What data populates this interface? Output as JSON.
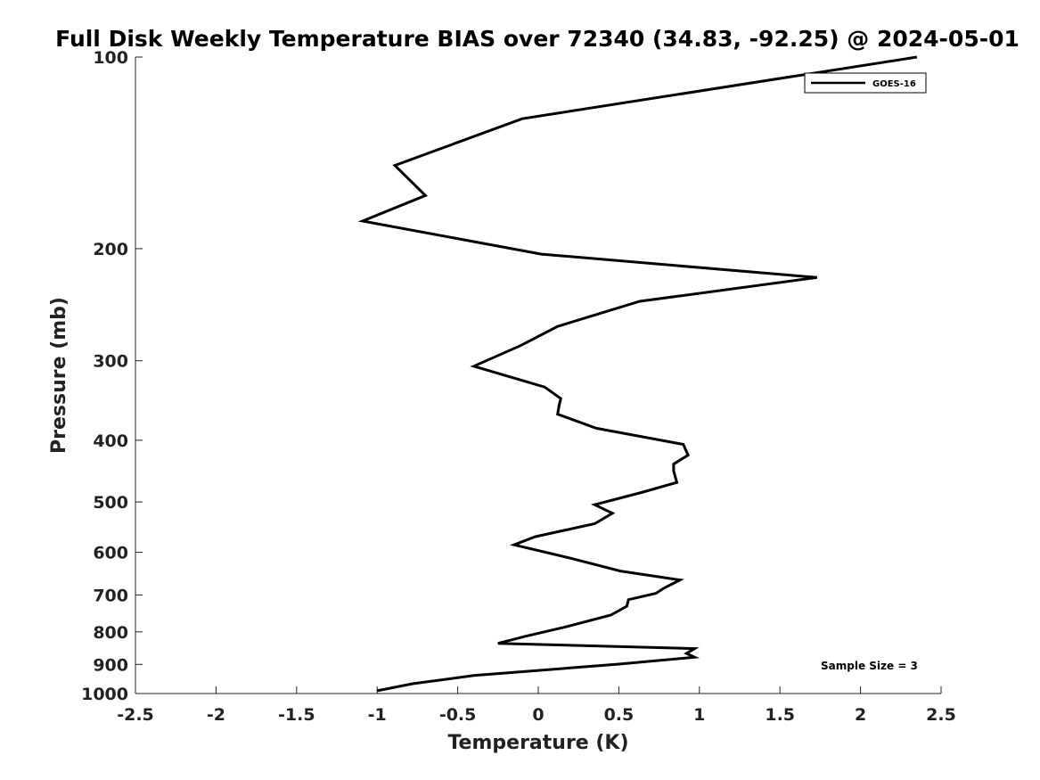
{
  "chart_data": {
    "type": "line",
    "title": "Full Disk Weekly Temperature BIAS over 72340 (34.83, -92.25) @ 2024-05-01",
    "xlabel": "Temperature (K)",
    "ylabel": "Pressure (mb)",
    "xlim": [
      -2.5,
      2.5
    ],
    "ylim": [
      100,
      1000
    ],
    "y_scale": "log",
    "y_reversed": true,
    "x_ticks": [
      "-2.5",
      "-2",
      "-1.5",
      "-1",
      "-0.5",
      "0",
      "0.5",
      "1",
      "1.5",
      "2",
      "2.5"
    ],
    "y_ticks": [
      "100",
      "200",
      "300",
      "400",
      "500",
      "600",
      "700",
      "800",
      "900",
      "1000"
    ],
    "grid": false,
    "legend_position": "top-right",
    "annotation": "Sample Size = 3",
    "series": [
      {
        "name": "GOES-16",
        "color": "#000000",
        "x": [
          2.35,
          -0.1,
          -0.89,
          -0.7,
          -1.09,
          0.02,
          1.73,
          0.63,
          0.12,
          -0.11,
          -0.4,
          0.04,
          0.14,
          0.13,
          0.12,
          0.36,
          0.9,
          0.93,
          0.84,
          0.84,
          0.86,
          0.63,
          0.35,
          0.46,
          0.35,
          -0.02,
          -0.15,
          0.2,
          0.51,
          0.88,
          0.78,
          0.73,
          0.56,
          0.55,
          0.45,
          0.16,
          -0.08,
          -0.25,
          0.97,
          0.92,
          0.97,
          0.5,
          -0.4,
          -0.78,
          -1.0
        ],
        "y": [
          100,
          125,
          148,
          165,
          181,
          204,
          222,
          242,
          265,
          284,
          306,
          330,
          344,
          352,
          364,
          383,
          406,
          422,
          436,
          447,
          466,
          484,
          505,
          521,
          541,
          567,
          584,
          613,
          642,
          663,
          683,
          696,
          712,
          729,
          753,
          787,
          813,
          834,
          850,
          865,
          877,
          899,
          937,
          965,
          990
        ]
      }
    ]
  }
}
